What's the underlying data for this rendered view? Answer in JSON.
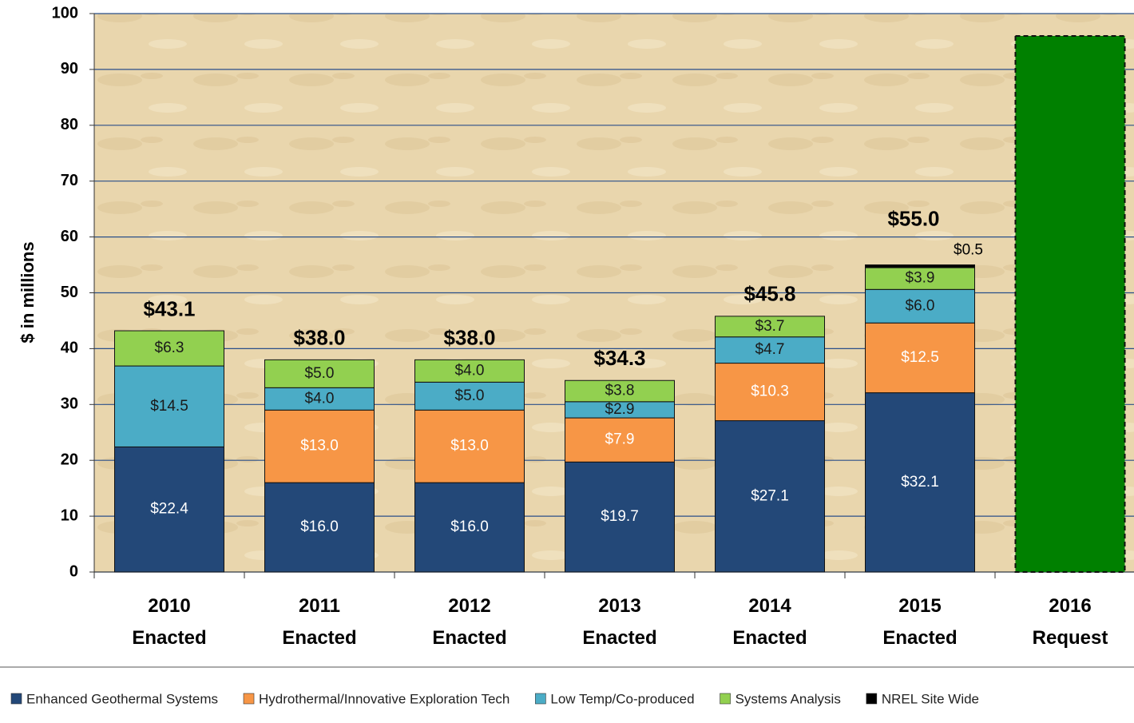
{
  "chart_data": {
    "type": "stacked-bar",
    "ylabel": "$ in millions",
    "categories": [
      "2010 Enacted",
      "2011 Enacted",
      "2012 Enacted",
      "2013 Enacted",
      "2014 Enacted",
      "2015 Enacted",
      "2016 Request"
    ],
    "series": [
      {
        "name": "Enhanced Geothermal Systems",
        "color": "#234878",
        "label_color": "#ffffff",
        "values": [
          22.4,
          16,
          16,
          19.7,
          27.1,
          32.1,
          null
        ],
        "value_labels": [
          "$22.4",
          "$16.0",
          "$16.0",
          "$19.7",
          "$27.1",
          "$32.1",
          null
        ]
      },
      {
        "name": "Hydrothermal/Innovative Exploration Tech",
        "color": "#f79646",
        "label_color": "#ffffff",
        "values": [
          null,
          13,
          13,
          7.9,
          10.3,
          12.5,
          null
        ],
        "value_labels": [
          null,
          "$13.0",
          "$13.0",
          "$7.9",
          "$10.3",
          "$12.5",
          null
        ]
      },
      {
        "name": "Low Temp/Co-produced",
        "color": "#4bacc6",
        "label_color": "#1a1a1a",
        "values": [
          14.5,
          4,
          5,
          2.9,
          4.7,
          6,
          null
        ],
        "value_labels": [
          "$14.5",
          "$4.0",
          "$5.0",
          "$2.9",
          "$4.7",
          "$6.0",
          null
        ]
      },
      {
        "name": "Systems Analysis",
        "color": "#92d050",
        "label_color": "#1a1a1a",
        "values": [
          6.3,
          5,
          4,
          3.8,
          3.7,
          3.9,
          null
        ],
        "value_labels": [
          "$6.3",
          "$5.0",
          "$4.0",
          "$3.8",
          "$3.7",
          "$3.9",
          null
        ]
      },
      {
        "name": "NREL Site Wide",
        "color": "#000000",
        "label_color": "#000000",
        "values": [
          null,
          null,
          null,
          null,
          null,
          0.5,
          null
        ],
        "value_labels": [
          null,
          null,
          null,
          null,
          null,
          "$0.5",
          null
        ]
      },
      {
        "color": "#008000",
        "dashed": true,
        "values": [
          null,
          null,
          null,
          null,
          null,
          null,
          96
        ]
      }
    ],
    "totals": [
      43.1,
      38,
      38,
      34.3,
      45.8,
      55,
      null
    ],
    "total_labels": [
      "$43.1",
      "$38.0",
      "$38.0",
      "$34.3",
      "$45.8",
      "$55.0",
      null
    ],
    "ylim": [
      0,
      100
    ],
    "yticks": [
      0,
      10,
      20,
      30,
      40,
      50,
      60,
      70,
      80,
      90,
      100
    ],
    "grid": true
  }
}
